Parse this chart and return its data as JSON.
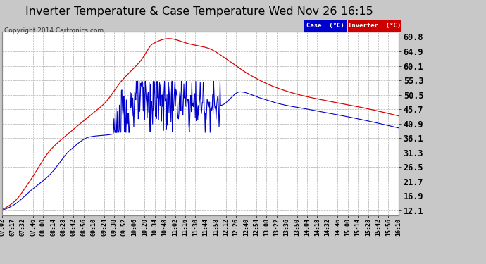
{
  "title": "Inverter Temperature & Case Temperature Wed Nov 26 16:15",
  "copyright": "Copyright 2014 Cartronics.com",
  "ylabel_right": [
    "69.8",
    "64.9",
    "60.1",
    "55.3",
    "50.5",
    "45.7",
    "40.9",
    "36.1",
    "31.3",
    "26.5",
    "21.7",
    "16.9",
    "12.1"
  ],
  "yticks": [
    69.8,
    64.9,
    60.1,
    55.3,
    50.5,
    45.7,
    40.9,
    36.1,
    31.3,
    26.5,
    21.7,
    16.9,
    12.1
  ],
  "ylim": [
    10.5,
    71.5
  ],
  "bg_color": "#c8c8c8",
  "plot_bg": "#ffffff",
  "grid_color": "#aaaaaa",
  "case_color": "#0000cc",
  "inverter_color": "#dd0000",
  "title_fontsize": 12,
  "xtick_labels": [
    "07:02",
    "07:17",
    "07:32",
    "07:46",
    "08:00",
    "08:14",
    "08:28",
    "08:42",
    "08:56",
    "09:10",
    "09:24",
    "09:38",
    "09:52",
    "10:06",
    "10:20",
    "10:34",
    "10:48",
    "11:02",
    "11:16",
    "11:30",
    "11:44",
    "11:58",
    "12:12",
    "12:26",
    "12:40",
    "12:54",
    "13:08",
    "13:22",
    "13:36",
    "13:50",
    "14:04",
    "14:18",
    "14:32",
    "14:46",
    "15:00",
    "15:14",
    "15:28",
    "15:42",
    "15:56",
    "16:10"
  ],
  "case_keypoints_x": [
    0,
    0.03,
    0.07,
    0.12,
    0.17,
    0.22,
    0.26,
    0.3,
    0.35,
    0.38,
    0.42,
    0.47,
    0.52,
    0.57,
    0.62,
    0.68,
    0.75,
    0.82,
    0.9,
    1.0
  ],
  "case_keypoints_y": [
    12.5,
    15.0,
    22.0,
    32.0,
    38.0,
    43.5,
    48.0,
    55.0,
    62.0,
    67.5,
    69.2,
    67.5,
    66.0,
    62.0,
    57.5,
    53.5,
    50.5,
    48.5,
    46.5,
    43.5
  ],
  "inv_keypoints_x": [
    0,
    0.03,
    0.07,
    0.12,
    0.17,
    0.22,
    0.28,
    0.34,
    0.55,
    0.6,
    0.65,
    0.7,
    0.78,
    0.88,
    1.0
  ],
  "inv_keypoints_y": [
    12.2,
    14.0,
    18.5,
    24.0,
    32.0,
    36.5,
    37.5,
    49.0,
    47.0,
    51.5,
    49.5,
    47.5,
    45.5,
    43.0,
    39.5
  ],
  "inv_noise_xstart": 0.28,
  "inv_noise_xend": 0.55,
  "inv_noise_amp": 5.0
}
